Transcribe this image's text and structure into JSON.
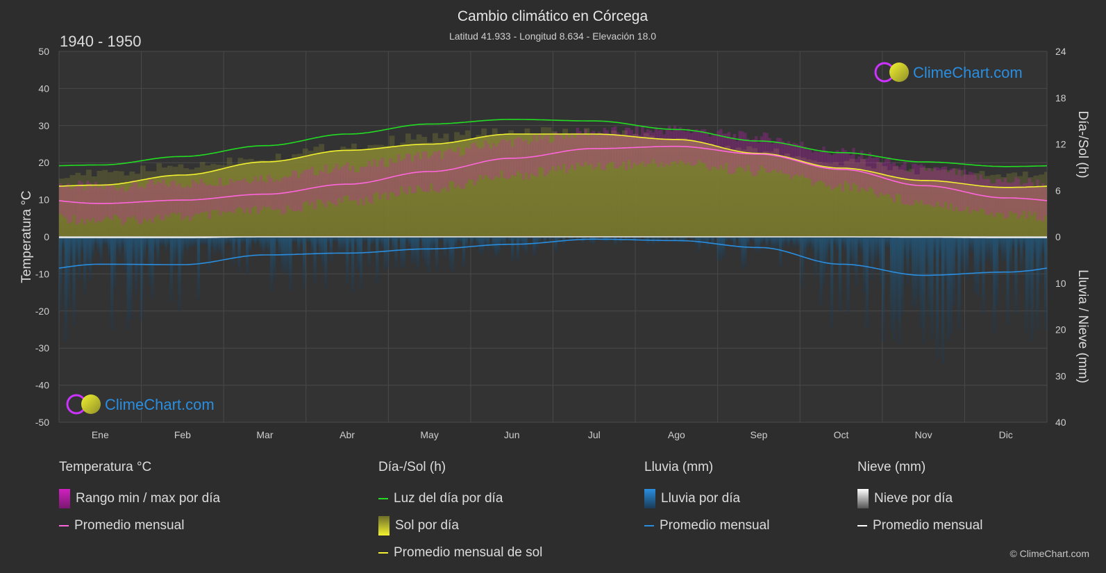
{
  "title": "Cambio climático en Córcega",
  "subtitle": "Latitud 41.933 - Longitud 8.634 - Elevación 18.0",
  "period": "1940 - 1950",
  "logo_text": "ClimeChart.com",
  "copyright": "© ClimeChart.com",
  "colors": {
    "background": "#2d2d2d",
    "daylight": "#22dd22",
    "sunshine_avg": "#f2f230",
    "sunshine_fill": "#8f8f2a",
    "temp_avg": "#ff66dd",
    "temp_range": "#d020c0",
    "rain": "#2a8ee0",
    "snow": "#ffffff"
  },
  "chart_data": {
    "type": "area",
    "categories": [
      "Ene",
      "Feb",
      "Mar",
      "Abr",
      "May",
      "Jun",
      "Jul",
      "Ago",
      "Sep",
      "Oct",
      "Nov",
      "Dic"
    ],
    "left_axis": {
      "label": "Temperatura °C",
      "ticks": [
        50,
        40,
        30,
        20,
        10,
        0,
        -10,
        -20,
        -30,
        -40,
        -50
      ],
      "ylim": [
        -50,
        50
      ]
    },
    "right_axis_top": {
      "label": "Día-/Sol (h)",
      "ticks": [
        24,
        18,
        12,
        6,
        0
      ],
      "ylim": [
        0,
        24
      ]
    },
    "right_axis_bottom": {
      "label": "Lluvia / Nieve (mm)",
      "ticks": [
        0,
        10,
        20,
        30,
        40
      ],
      "ylim": [
        0,
        40
      ]
    },
    "grid": true,
    "series": [
      {
        "name": "Luz del día por día",
        "unit": "h",
        "values": [
          9.3,
          10.4,
          11.8,
          13.3,
          14.6,
          15.2,
          15.0,
          13.9,
          12.4,
          10.9,
          9.7,
          9.1
        ]
      },
      {
        "name": "Promedio mensual de sol",
        "unit": "h",
        "values": [
          6.7,
          8.0,
          9.7,
          11.2,
          12.0,
          13.3,
          13.3,
          12.6,
          10.8,
          8.9,
          7.3,
          6.4
        ]
      },
      {
        "name": "Promedio mensual",
        "group": "Temperatura °C",
        "unit": "°C",
        "values": [
          9.0,
          9.9,
          11.5,
          14.2,
          17.6,
          21.2,
          23.8,
          24.4,
          22.3,
          18.2,
          13.8,
          10.5
        ]
      },
      {
        "name": "Promedio mensual",
        "group": "Lluvia (mm)",
        "unit": "mm",
        "values": [
          5.9,
          6.0,
          3.9,
          3.5,
          2.6,
          1.6,
          0.5,
          0.8,
          2.3,
          5.9,
          8.3,
          7.6
        ]
      },
      {
        "name": "Promedio mensual",
        "group": "Nieve (mm)",
        "unit": "mm",
        "values": [
          0.2,
          0.2,
          0.0,
          0.0,
          0.0,
          0.0,
          0.0,
          0.0,
          0.0,
          0.0,
          0.1,
          0.2
        ]
      }
    ]
  },
  "legend": {
    "temperature": {
      "title": "Temperatura °C",
      "items": [
        "Rango min / max por día",
        "Promedio mensual"
      ]
    },
    "sun": {
      "title": "Día-/Sol (h)",
      "items": [
        "Luz del día por día",
        "Sol por día",
        "Promedio mensual de sol"
      ]
    },
    "rain": {
      "title": "Lluvia (mm)",
      "items": [
        "Lluvia por día",
        "Promedio mensual"
      ]
    },
    "snow": {
      "title": "Nieve (mm)",
      "items": [
        "Nieve por día",
        "Promedio mensual"
      ]
    }
  }
}
